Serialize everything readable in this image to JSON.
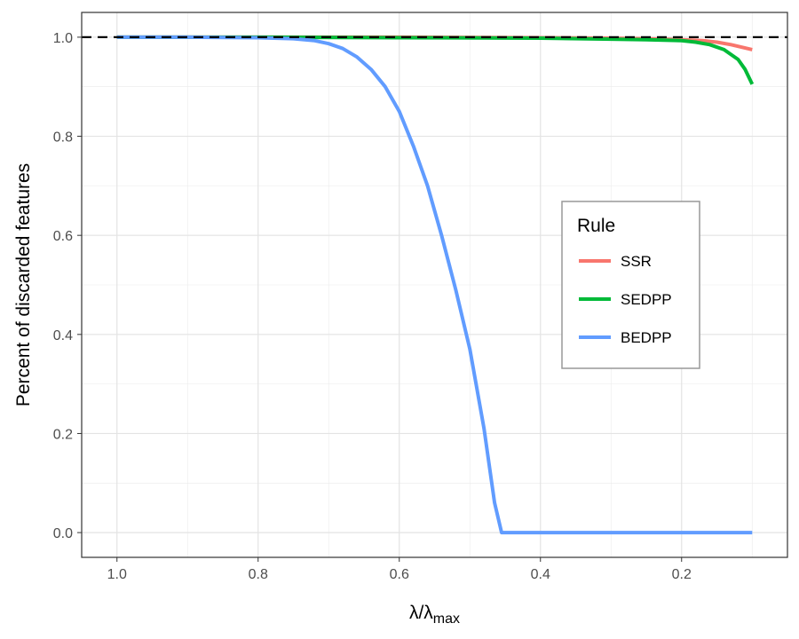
{
  "chart_data": {
    "type": "line",
    "xlabel": "λ/λ",
    "xlabel_sub": "max",
    "ylabel": "Percent of discarded features",
    "xlim": [
      1.05,
      0.05
    ],
    "x_reversed": true,
    "ylim": [
      -0.05,
      1.05
    ],
    "x_ticks": [
      "1.0",
      "0.8",
      "0.6",
      "0.4",
      "0.2"
    ],
    "x_tick_values": [
      1.0,
      0.8,
      0.6,
      0.4,
      0.2
    ],
    "y_ticks": [
      "0.0",
      "0.2",
      "0.4",
      "0.6",
      "0.8",
      "1.0"
    ],
    "y_tick_values": [
      0.0,
      0.2,
      0.4,
      0.6,
      0.8,
      1.0
    ],
    "grid": true,
    "reference_line": {
      "y": 1.0,
      "style": "dashed",
      "color": "#000000"
    },
    "legend": {
      "title": "Rule",
      "placement": "center-right"
    },
    "series": [
      {
        "name": "SSR",
        "color": "#F8766D",
        "points": [
          [
            1.0,
            1.0
          ],
          [
            0.8,
            1.0
          ],
          [
            0.6,
            1.0
          ],
          [
            0.4,
            0.999
          ],
          [
            0.3,
            0.998
          ],
          [
            0.25,
            0.997
          ],
          [
            0.2,
            0.995
          ],
          [
            0.17,
            0.993
          ],
          [
            0.15,
            0.99
          ],
          [
            0.13,
            0.985
          ],
          [
            0.1,
            0.975
          ]
        ]
      },
      {
        "name": "SEDPP",
        "color": "#00BA38",
        "points": [
          [
            1.0,
            1.0
          ],
          [
            0.8,
            1.0
          ],
          [
            0.6,
            0.999
          ],
          [
            0.4,
            0.998
          ],
          [
            0.3,
            0.996
          ],
          [
            0.25,
            0.995
          ],
          [
            0.2,
            0.993
          ],
          [
            0.18,
            0.99
          ],
          [
            0.16,
            0.985
          ],
          [
            0.14,
            0.975
          ],
          [
            0.12,
            0.955
          ],
          [
            0.11,
            0.935
          ],
          [
            0.1,
            0.905
          ]
        ]
      },
      {
        "name": "BEDPP",
        "color": "#619CFF",
        "points": [
          [
            1.0,
            1.0
          ],
          [
            0.9,
            1.0
          ],
          [
            0.8,
            0.999
          ],
          [
            0.75,
            0.997
          ],
          [
            0.72,
            0.993
          ],
          [
            0.7,
            0.987
          ],
          [
            0.68,
            0.977
          ],
          [
            0.66,
            0.96
          ],
          [
            0.64,
            0.935
          ],
          [
            0.62,
            0.9
          ],
          [
            0.6,
            0.85
          ],
          [
            0.58,
            0.78
          ],
          [
            0.56,
            0.7
          ],
          [
            0.54,
            0.6
          ],
          [
            0.52,
            0.49
          ],
          [
            0.5,
            0.37
          ],
          [
            0.48,
            0.21
          ],
          [
            0.465,
            0.06
          ],
          [
            0.455,
            0.0
          ],
          [
            0.4,
            0.0
          ],
          [
            0.3,
            0.0
          ],
          [
            0.2,
            0.0
          ],
          [
            0.1,
            0.0
          ]
        ]
      }
    ]
  }
}
